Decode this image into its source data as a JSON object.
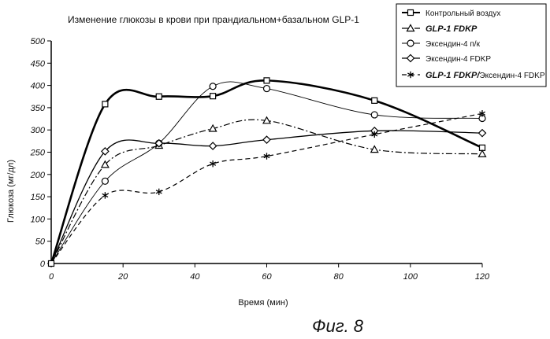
{
  "chart_data": {
    "type": "line",
    "title": "Изменение глюкозы в крови при прандиальном+базальном GLP-1",
    "xlabel": "Время (мин)",
    "ylabel": "Глюкоза (мг/дл)",
    "xlim": [
      0,
      120
    ],
    "ylim": [
      0,
      500
    ],
    "xticks": [
      0,
      20,
      40,
      60,
      80,
      100,
      120
    ],
    "yticks": [
      0,
      50,
      100,
      150,
      200,
      250,
      300,
      350,
      400,
      450,
      500
    ],
    "x_tick_labels": [
      "0",
      "20",
      "40",
      "60",
      "80",
      "100",
      "120"
    ],
    "y_tick_labels": [
      "0",
      "50",
      "100",
      "150",
      "200",
      "250",
      "300",
      "350",
      "400",
      "450",
      "500"
    ],
    "grid": false,
    "legend_position": "top-right",
    "series": [
      {
        "name": "Контрольный воздух",
        "marker": "square",
        "line_style": "solid-bold",
        "x": [
          0,
          15,
          30,
          45,
          60,
          90,
          120
        ],
        "y": [
          0,
          358,
          375,
          376,
          411,
          366,
          260
        ]
      },
      {
        "name": "GLP-1 FDKP",
        "marker": "triangle",
        "line_style": "dash-dot",
        "x": [
          0,
          15,
          30,
          45,
          60,
          90,
          120
        ],
        "y": [
          0,
          222,
          265,
          303,
          321,
          256,
          246
        ]
      },
      {
        "name": "Эксендин-4 п/к",
        "marker": "circle",
        "line_style": "solid-thin",
        "x": [
          0,
          15,
          30,
          45,
          60,
          90,
          120
        ],
        "y": [
          0,
          185,
          270,
          398,
          393,
          334,
          326
        ]
      },
      {
        "name": "Эксендин-4 FDKP",
        "marker": "diamond",
        "line_style": "solid",
        "x": [
          0,
          15,
          30,
          45,
          60,
          90,
          120
        ],
        "y": [
          0,
          252,
          270,
          264,
          278,
          298,
          293
        ]
      },
      {
        "name_parts": [
          "GLP-1 FDKP/",
          "Эксендин-4 FDKP"
        ],
        "marker": "asterisk",
        "line_style": "dashed",
        "x": [
          0,
          15,
          30,
          45,
          60,
          90,
          120
        ],
        "y": [
          0,
          153,
          161,
          224,
          241,
          290,
          337
        ]
      }
    ]
  },
  "figure_label": "Фиг. 8"
}
